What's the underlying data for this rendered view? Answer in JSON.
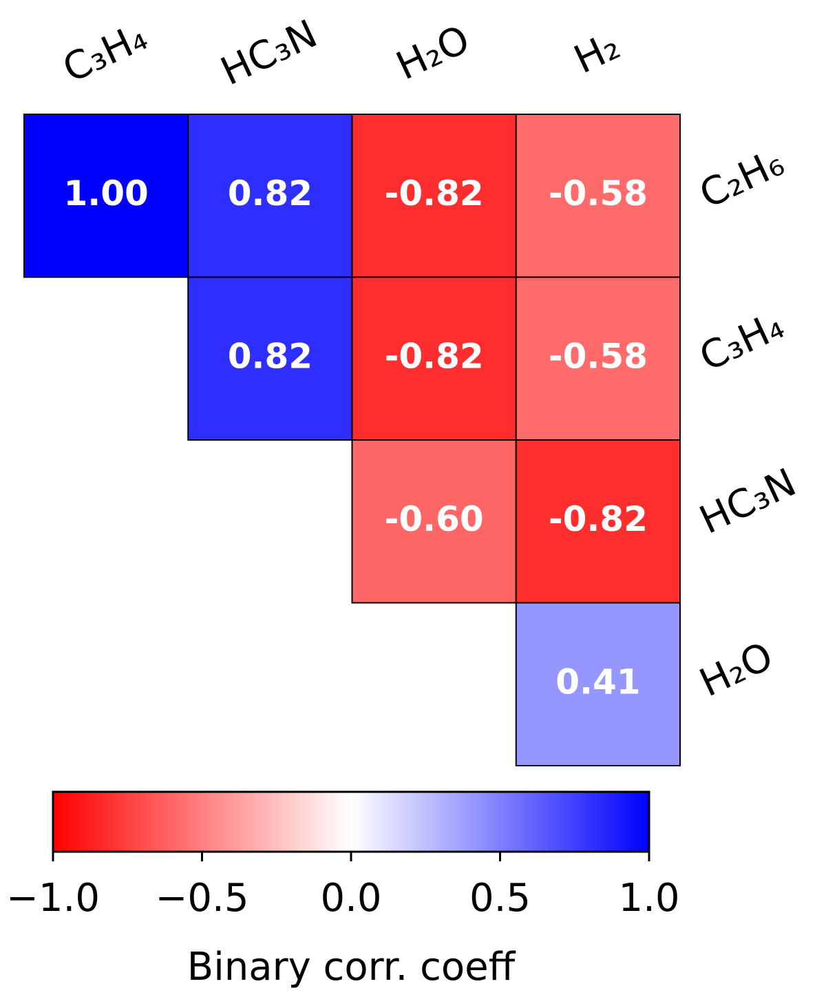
{
  "chart_data": {
    "type": "heatmap",
    "x_categories": [
      "C₃H₄",
      "HC₃N",
      "H₂O",
      "H₂"
    ],
    "y_categories": [
      "C₂H₆",
      "C₃H₄",
      "HC₃N",
      "H₂O"
    ],
    "values": [
      [
        1,
        0.82,
        -0.82,
        -0.58
      ],
      [
        null,
        0.82,
        -0.82,
        -0.58
      ],
      [
        null,
        null,
        -0.6,
        -0.82
      ],
      [
        null,
        null,
        null,
        0.41
      ]
    ],
    "value_labels": [
      [
        "1.00",
        "0.82",
        "-0.82",
        "-0.58"
      ],
      [
        null,
        "0.82",
        "-0.82",
        "-0.58"
      ],
      [
        null,
        null,
        "-0.60",
        "-0.82"
      ],
      [
        null,
        null,
        null,
        "0.41"
      ]
    ],
    "colormap": [
      "#ff0000",
      "#ffffff",
      "#0000ff"
    ],
    "clim": [
      -1,
      1
    ],
    "cticks": [
      {
        "value": -1,
        "label": "−1.0"
      },
      {
        "value": -0.5,
        "label": "−0.5"
      },
      {
        "value": 0,
        "label": "0.0"
      },
      {
        "value": 0.5,
        "label": "0.5"
      },
      {
        "value": 1,
        "label": "1.0"
      }
    ],
    "colorbar_label": "Binary corr. coeff"
  }
}
